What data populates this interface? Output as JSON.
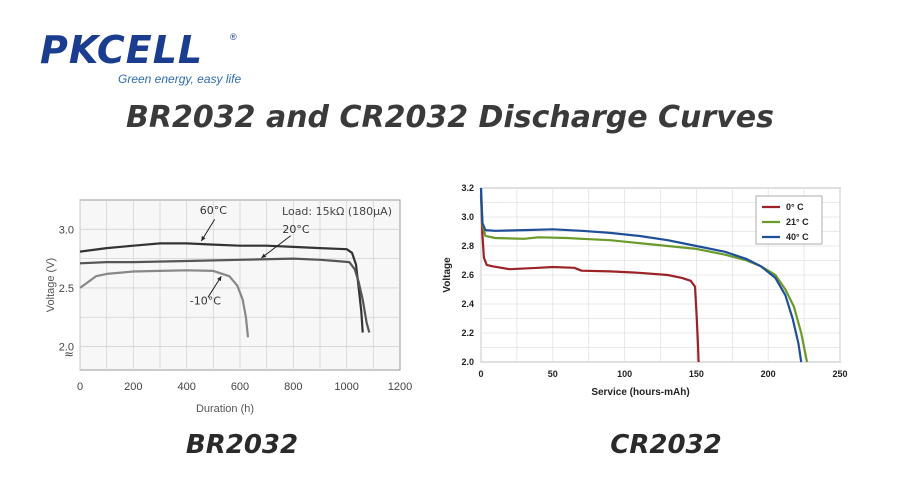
{
  "logo": {
    "text": "PKCELL",
    "tagline": "Green energy, easy life",
    "registered": "®"
  },
  "page_title": "BR2032 and CR2032 Discharge Curves",
  "captions": {
    "left": "BR2032",
    "right": "CR2032"
  },
  "colors": {
    "logo_blue": "#1a3d8f",
    "series_0c": "#9b2226",
    "series_21c": "#6a9a2a",
    "series_40c": "#1f4f99"
  },
  "chart_data": [
    {
      "type": "line",
      "title": "",
      "annotation": "Load: 15kΩ (180μA)",
      "xlabel": "Duration (h)",
      "ylabel": "Voltage (V)",
      "xlim": [
        0,
        1200
      ],
      "ylim": [
        1.8,
        3.25
      ],
      "x_ticks": [
        "0",
        "200",
        "400",
        "600",
        "800",
        "1000",
        "1200"
      ],
      "y_ticks": [
        "2.0",
        "2.5",
        "3.0"
      ],
      "axis_break": "≈",
      "grid": true,
      "series": [
        {
          "name": "60°C",
          "color": "#333333",
          "points": [
            [
              0,
              2.81
            ],
            [
              100,
              2.84
            ],
            [
              200,
              2.86
            ],
            [
              300,
              2.88
            ],
            [
              400,
              2.88
            ],
            [
              500,
              2.87
            ],
            [
              600,
              2.86
            ],
            [
              700,
              2.86
            ],
            [
              800,
              2.85
            ],
            [
              900,
              2.84
            ],
            [
              1000,
              2.83
            ],
            [
              1020,
              2.8
            ],
            [
              1035,
              2.7
            ],
            [
              1045,
              2.5
            ],
            [
              1055,
              2.3
            ],
            [
              1060,
              2.12
            ]
          ]
        },
        {
          "name": "20°C",
          "color": "#555555",
          "points": [
            [
              0,
              2.71
            ],
            [
              100,
              2.72
            ],
            [
              200,
              2.72
            ],
            [
              400,
              2.73
            ],
            [
              600,
              2.74
            ],
            [
              800,
              2.75
            ],
            [
              900,
              2.74
            ],
            [
              960,
              2.73
            ],
            [
              1010,
              2.72
            ],
            [
              1030,
              2.66
            ],
            [
              1045,
              2.55
            ],
            [
              1060,
              2.4
            ],
            [
              1075,
              2.2
            ],
            [
              1085,
              2.12
            ]
          ]
        },
        {
          "name": "-10°C",
          "color": "#888888",
          "points": [
            [
              0,
              2.5
            ],
            [
              30,
              2.55
            ],
            [
              60,
              2.6
            ],
            [
              100,
              2.62
            ],
            [
              200,
              2.64
            ],
            [
              300,
              2.645
            ],
            [
              400,
              2.65
            ],
            [
              500,
              2.645
            ],
            [
              560,
              2.6
            ],
            [
              590,
              2.52
            ],
            [
              610,
              2.4
            ],
            [
              622,
              2.25
            ],
            [
              630,
              2.08
            ]
          ]
        }
      ],
      "labels": [
        {
          "text": "60°C",
          "x": 500,
          "y": 3.13
        },
        {
          "text": "20°C",
          "x": 810,
          "y": 2.97
        },
        {
          "text": "-10°C",
          "x": 470,
          "y": 2.36
        }
      ]
    },
    {
      "type": "line",
      "title": "",
      "xlabel": "Service (hours-mAh)",
      "ylabel": "Voltage",
      "xlim": [
        0,
        250
      ],
      "ylim": [
        2.0,
        3.2
      ],
      "x_ticks": [
        "0",
        "50",
        "100",
        "150",
        "200",
        "250"
      ],
      "y_ticks": [
        "2.0",
        "2.2",
        "2.4",
        "2.6",
        "2.8",
        "3.0",
        "3.2"
      ],
      "grid": true,
      "legend": "top-right",
      "series": [
        {
          "name": "0° C",
          "color": "#9b2226",
          "points": [
            [
              0,
              3.15
            ],
            [
              1,
              2.88
            ],
            [
              2,
              2.72
            ],
            [
              4,
              2.67
            ],
            [
              8,
              2.66
            ],
            [
              20,
              2.64
            ],
            [
              40,
              2.65
            ],
            [
              50,
              2.655
            ],
            [
              65,
              2.65
            ],
            [
              70,
              2.63
            ],
            [
              90,
              2.625
            ],
            [
              110,
              2.615
            ],
            [
              130,
              2.6
            ],
            [
              140,
              2.58
            ],
            [
              146,
              2.56
            ],
            [
              149,
              2.52
            ],
            [
              150,
              2.35
            ],
            [
              151,
              2.15
            ],
            [
              151.5,
              2.0
            ]
          ]
        },
        {
          "name": "21° C",
          "color": "#6a9a2a",
          "points": [
            [
              0,
              3.2
            ],
            [
              1,
              2.95
            ],
            [
              3,
              2.87
            ],
            [
              10,
              2.855
            ],
            [
              30,
              2.85
            ],
            [
              40,
              2.86
            ],
            [
              60,
              2.855
            ],
            [
              70,
              2.85
            ],
            [
              90,
              2.84
            ],
            [
              110,
              2.82
            ],
            [
              130,
              2.8
            ],
            [
              150,
              2.78
            ],
            [
              170,
              2.74
            ],
            [
              185,
              2.7
            ],
            [
              195,
              2.66
            ],
            [
              205,
              2.6
            ],
            [
              212,
              2.5
            ],
            [
              218,
              2.38
            ],
            [
              223,
              2.2
            ],
            [
              227,
              2.0
            ]
          ]
        },
        {
          "name": "40° C",
          "color": "#1f4f99",
          "points": [
            [
              0,
              3.2
            ],
            [
              1,
              2.96
            ],
            [
              3,
              2.91
            ],
            [
              10,
              2.905
            ],
            [
              30,
              2.91
            ],
            [
              50,
              2.915
            ],
            [
              70,
              2.905
            ],
            [
              90,
              2.89
            ],
            [
              110,
              2.87
            ],
            [
              130,
              2.84
            ],
            [
              150,
              2.8
            ],
            [
              170,
              2.76
            ],
            [
              185,
              2.71
            ],
            [
              195,
              2.66
            ],
            [
              205,
              2.58
            ],
            [
              212,
              2.46
            ],
            [
              217,
              2.3
            ],
            [
              221,
              2.13
            ],
            [
              223,
              2.0
            ]
          ]
        }
      ]
    }
  ]
}
